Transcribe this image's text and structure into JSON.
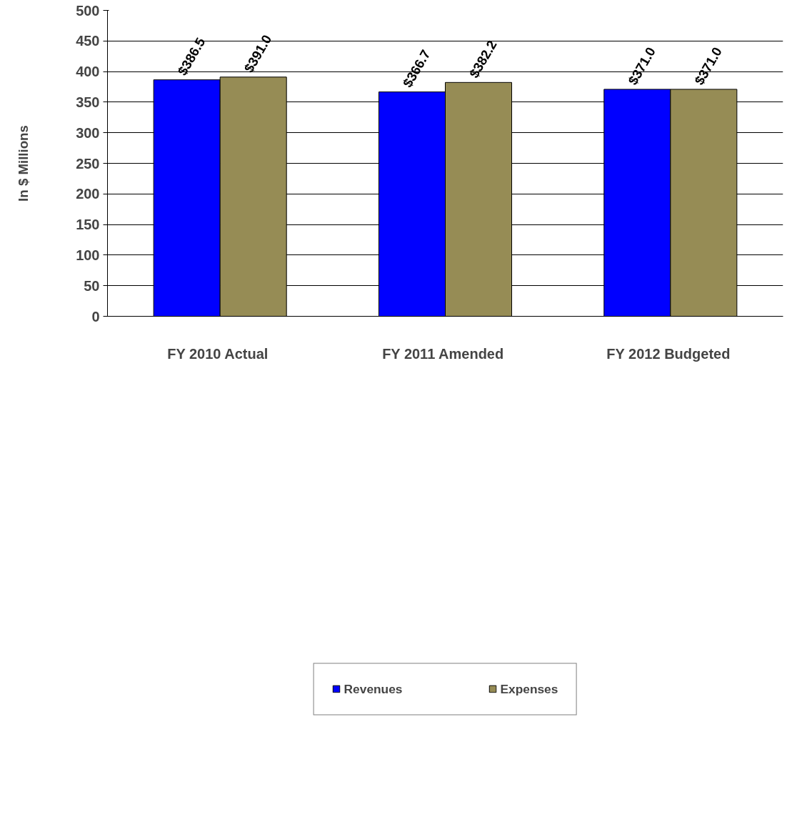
{
  "chart_data": {
    "type": "bar",
    "ylabel": "In $ Millions",
    "categories": [
      "FY 2010  Actual",
      "FY 2011  Amended",
      "FY 2012  Budgeted"
    ],
    "series": [
      {
        "name": "Revenues",
        "color": "#0000ff",
        "values": [
          386.5,
          366.7,
          371.0
        ],
        "value_labels": [
          "$386.5",
          "$366.7",
          "$371.0"
        ]
      },
      {
        "name": "Expenses",
        "color": "#968c55",
        "values": [
          391.0,
          382.2,
          371.0
        ],
        "value_labels": [
          "$391.0",
          "$382.2",
          "$371.0"
        ]
      }
    ],
    "ylim": [
      0,
      500
    ],
    "yticks": [
      0,
      50,
      100,
      150,
      200,
      250,
      300,
      350,
      400,
      450,
      500
    ],
    "grid": "y",
    "legend": "bottom"
  }
}
